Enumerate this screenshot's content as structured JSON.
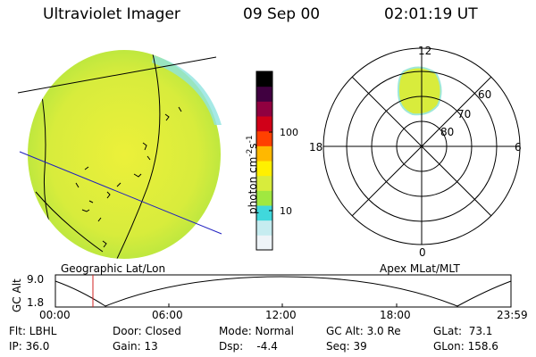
{
  "header": {
    "instrument": "Ultraviolet Imager",
    "date": "09 Sep 00",
    "time": "02:01:19 UT"
  },
  "colorbar": {
    "unit_label": "photon cm",
    "unit_exp1": "-2",
    "unit_mid": "s",
    "unit_exp2": "-1",
    "ticks": [
      {
        "label": "100",
        "value": 100
      },
      {
        "label": "10",
        "value": 10
      }
    ],
    "log_scale": true,
    "colors": [
      "#eef4f8",
      "#c6ecf0",
      "#40d8dc",
      "#a0e840",
      "#d8ec3c",
      "#fff000",
      "#ffb800",
      "#ff4000",
      "#d00018",
      "#900040",
      "#400040",
      "#000000"
    ]
  },
  "polar_plot": {
    "mlt_labels": [
      "12",
      "18",
      "6",
      "0"
    ],
    "mlat_labels": [
      "60",
      "70",
      "80"
    ],
    "title": "Apex MLat/MLT"
  },
  "geo_title": "Geographic Lat/Lon",
  "altitude_plot": {
    "ylabel": "GC Alt",
    "y_ticks": [
      "9.0",
      "1.8"
    ],
    "x_ticks": [
      "00:00",
      "06:00",
      "12:00",
      "18:00",
      "23:59"
    ],
    "marker_time": "02:01"
  },
  "status": {
    "filter": "Flt: LBHL",
    "ip": "IP: 36.0",
    "door": "Door: Closed",
    "gain": "Gain: 13",
    "mode": "Mode: Normal",
    "dsp": "Dsp:    -4.4",
    "gc_alt": "GC Alt: 3.0 Re",
    "seq": "Seq: 39",
    "glat": "GLat:  73.1",
    "glon": "GLon: 158.6"
  }
}
